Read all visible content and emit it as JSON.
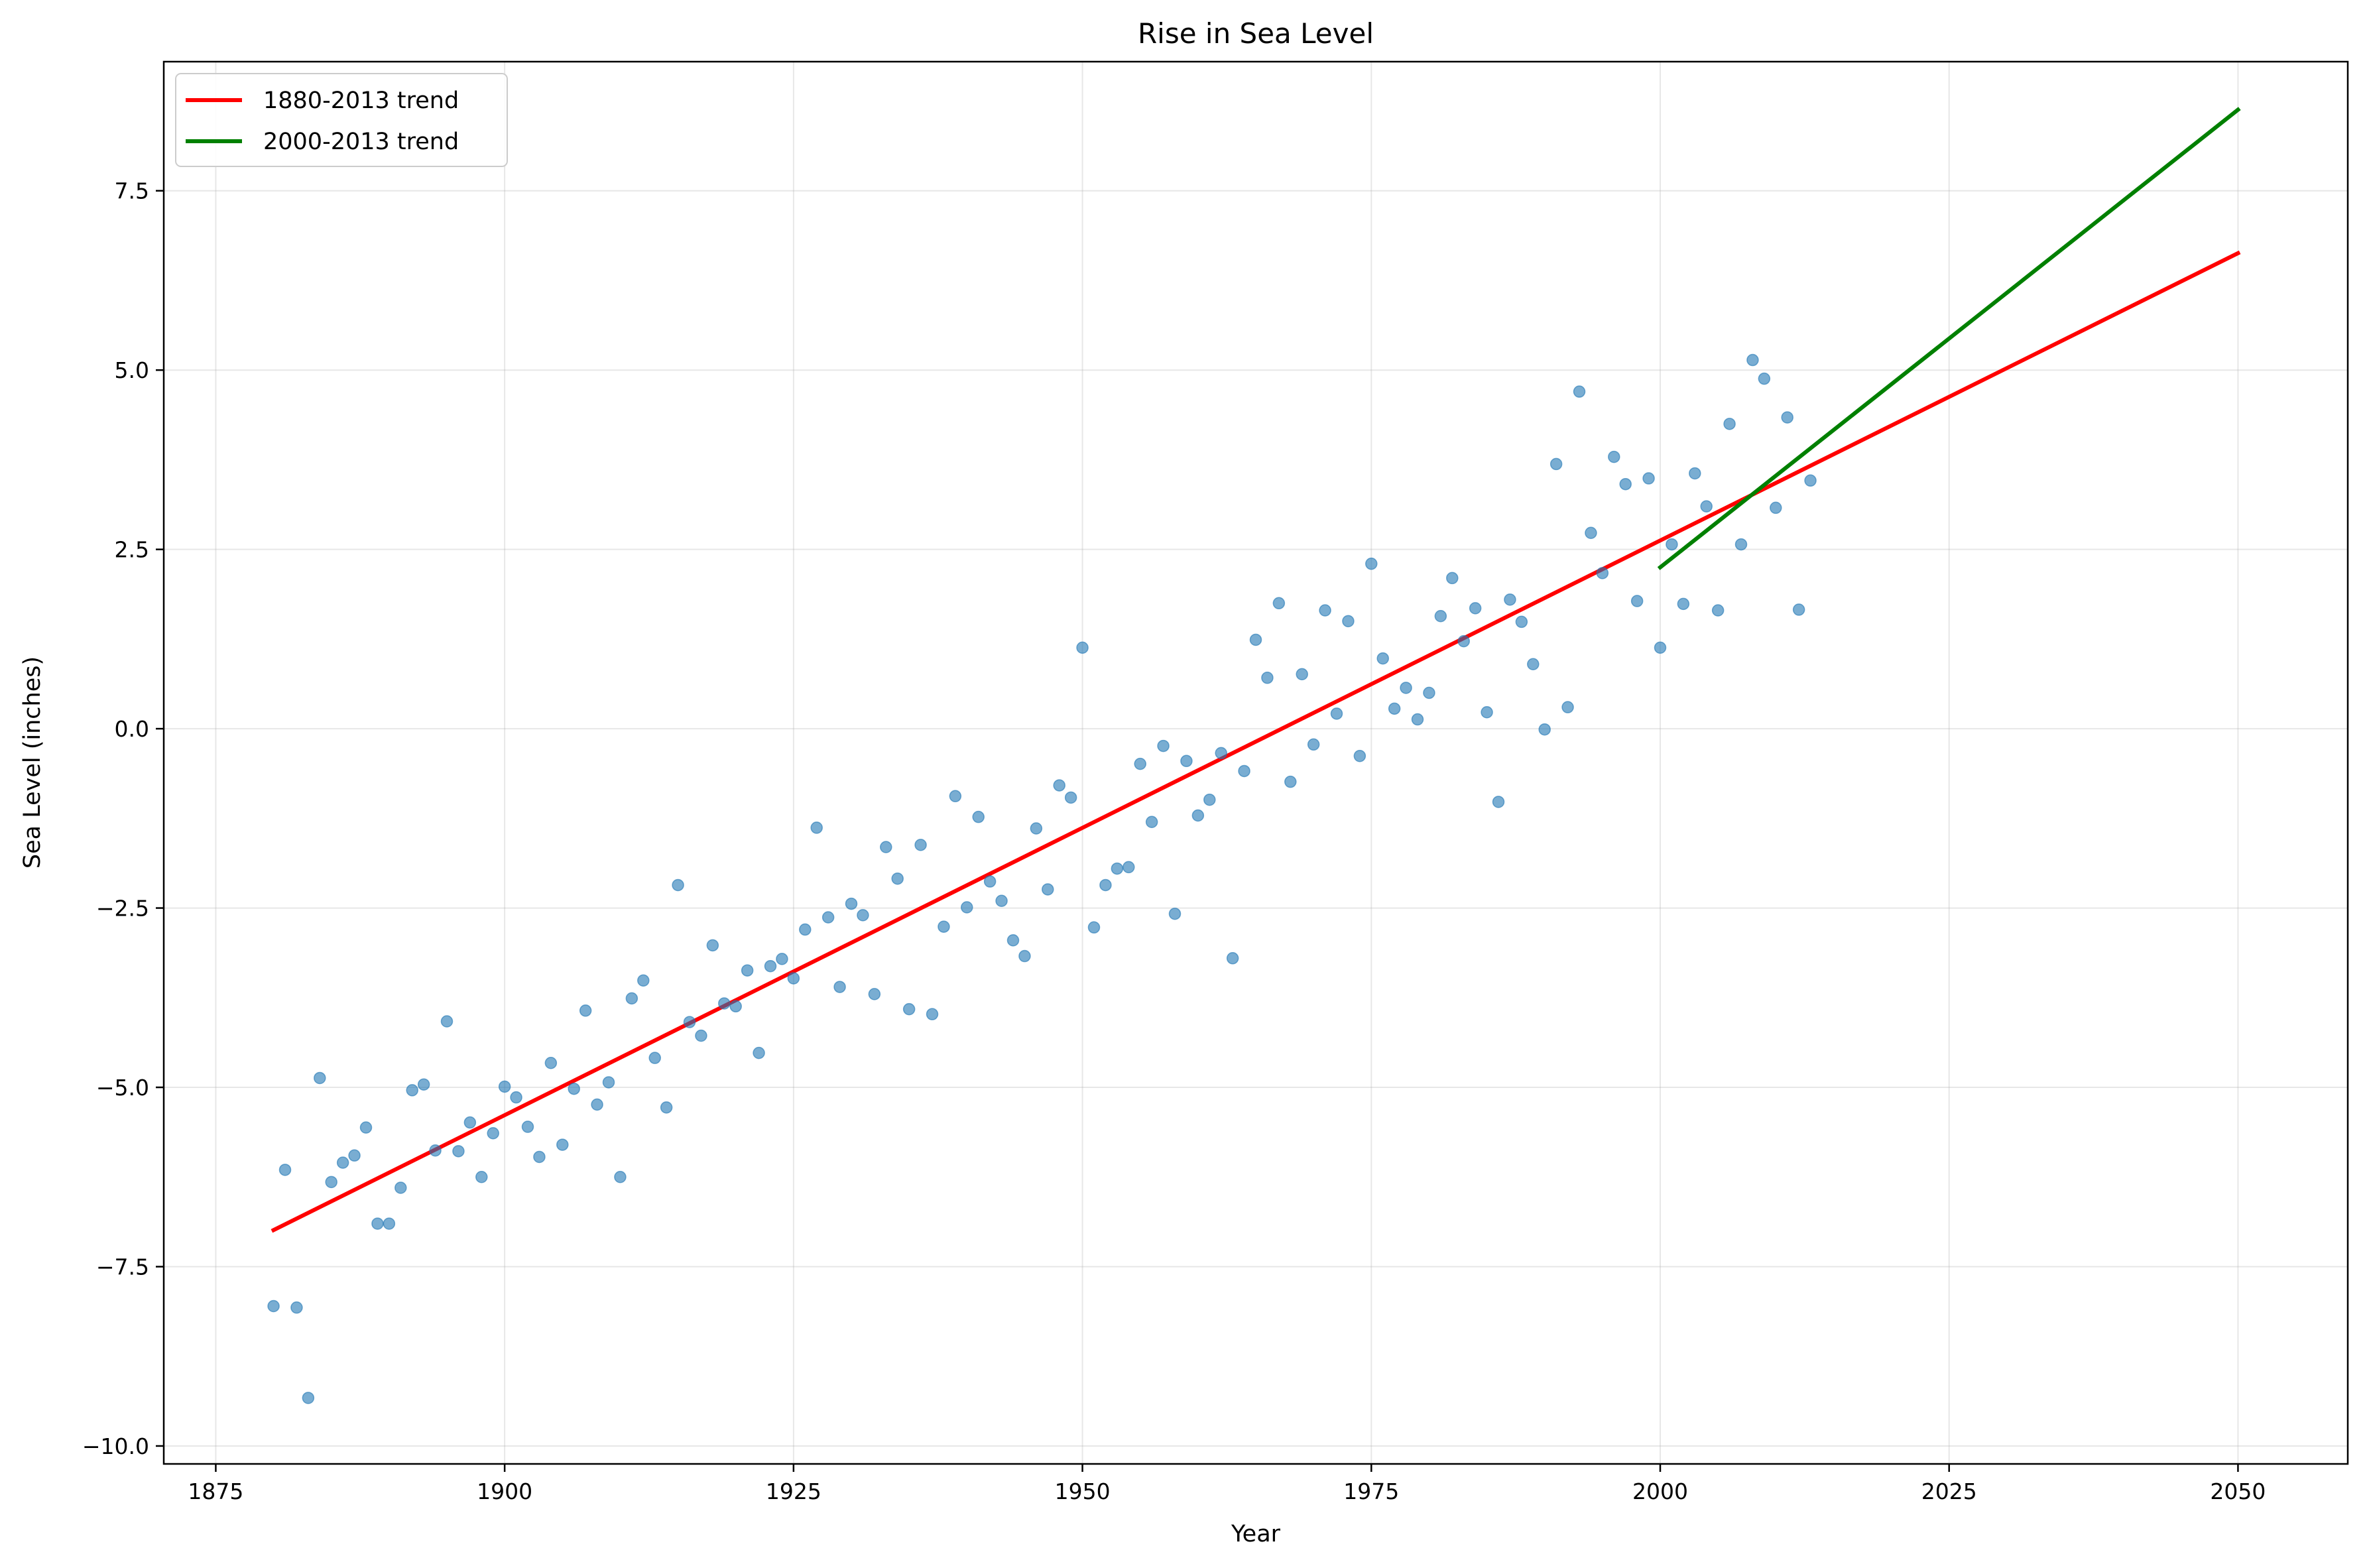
{
  "chart_data": {
    "type": "scatter",
    "title": "Rise in Sea Level",
    "xlabel": "Year",
    "ylabel": "Sea Level (inches)",
    "xlim": [
      1870.5,
      2059.5
    ],
    "ylim": [
      -10.25,
      9.3
    ],
    "grid": true,
    "legend_position": "top-left",
    "x_ticks": [
      1875,
      1900,
      1925,
      1950,
      1975,
      2000,
      2025,
      2050
    ],
    "x_tick_labels": [
      "1875",
      "1900",
      "1925",
      "1950",
      "1975",
      "2000",
      "2025",
      "2050"
    ],
    "y_ticks": [
      -10,
      -7.5,
      -5,
      -2.5,
      0,
      2.5,
      5,
      7.5
    ],
    "y_tick_labels": [
      "−10.0",
      "−7.5",
      "−5.0",
      "−2.5",
      "0.0",
      "2.5",
      "5.0",
      "7.5"
    ],
    "scatter": {
      "color": "#1f77b4",
      "x": [
        1880,
        1881,
        1882,
        1883,
        1884,
        1885,
        1886,
        1887,
        1888,
        1889,
        1890,
        1891,
        1892,
        1893,
        1894,
        1895,
        1896,
        1897,
        1898,
        1899,
        1900,
        1901,
        1902,
        1903,
        1904,
        1905,
        1906,
        1907,
        1908,
        1909,
        1910,
        1911,
        1912,
        1913,
        1914,
        1915,
        1916,
        1917,
        1918,
        1919,
        1920,
        1921,
        1922,
        1923,
        1924,
        1925,
        1926,
        1927,
        1928,
        1929,
        1930,
        1931,
        1932,
        1933,
        1934,
        1935,
        1936,
        1937,
        1938,
        1939,
        1940,
        1941,
        1942,
        1943,
        1944,
        1945,
        1946,
        1947,
        1948,
        1949,
        1950,
        1951,
        1952,
        1953,
        1954,
        1955,
        1956,
        1957,
        1958,
        1959,
        1960,
        1961,
        1962,
        1963,
        1964,
        1965,
        1966,
        1967,
        1968,
        1969,
        1970,
        1971,
        1972,
        1973,
        1974,
        1975,
        1976,
        1977,
        1978,
        1979,
        1980,
        1981,
        1982,
        1983,
        1984,
        1985,
        1986,
        1987,
        1988,
        1989,
        1990,
        1991,
        1992,
        1993,
        1994,
        1995,
        1996,
        1997,
        1998,
        1999,
        2000,
        2001,
        2002,
        2003,
        2004,
        2005,
        2006,
        2007,
        2008,
        2009,
        2010,
        2011,
        2012,
        2013
      ],
      "y": [
        -8.05,
        -6.15,
        -8.07,
        -9.33,
        -4.87,
        -6.32,
        -6.05,
        -5.95,
        -5.56,
        -6.9,
        -6.9,
        -6.4,
        -5.04,
        -4.96,
        -5.88,
        -4.08,
        -5.89,
        -5.49,
        -6.25,
        -5.64,
        -4.99,
        -5.14,
        -5.55,
        -5.97,
        -4.66,
        -5.8,
        -5.02,
        -3.93,
        -5.24,
        -4.93,
        -6.25,
        -3.76,
        -3.51,
        -4.59,
        -5.28,
        -2.18,
        -4.09,
        -4.28,
        -3.02,
        -3.83,
        -3.87,
        -3.37,
        -4.52,
        -3.31,
        -3.21,
        -3.48,
        -2.8,
        -1.38,
        -2.63,
        -3.6,
        -2.44,
        -2.6,
        -3.7,
        -1.65,
        -2.09,
        -3.91,
        -1.62,
        -3.98,
        -2.76,
        -0.94,
        -2.49,
        -1.23,
        -2.13,
        -2.4,
        -2.95,
        -3.17,
        -1.39,
        -2.24,
        -0.79,
        -0.96,
        1.13,
        -2.77,
        -2.18,
        -1.95,
        -1.93,
        -0.49,
        -1.3,
        -0.24,
        -2.58,
        -0.45,
        -1.21,
        -0.99,
        -0.34,
        -3.2,
        -0.59,
        1.24,
        0.71,
        1.75,
        -0.74,
        0.76,
        -0.22,
        1.65,
        0.21,
        1.5,
        -0.38,
        2.3,
        0.98,
        0.28,
        0.57,
        0.13,
        0.5,
        1.57,
        2.1,
        1.22,
        1.68,
        0.23,
        -1.02,
        1.8,
        1.49,
        0.9,
        -0.01,
        3.69,
        0.3,
        4.7,
        2.73,
        2.17,
        3.79,
        3.41,
        1.78,
        3.49,
        1.13,
        2.57,
        1.74,
        3.56,
        3.1,
        1.65,
        4.25,
        2.57,
        5.14,
        4.88,
        3.08,
        4.34,
        1.66,
        3.46
      ]
    },
    "series": [
      {
        "name": "1880-2013 trend",
        "color": "#ff0000",
        "x": [
          1880,
          2050
        ],
        "y": [
          -6.99,
          6.63
        ]
      },
      {
        "name": "2000-2013 trend",
        "color": "#008000",
        "x": [
          2000,
          2050
        ],
        "y": [
          2.25,
          8.63
        ]
      }
    ]
  }
}
